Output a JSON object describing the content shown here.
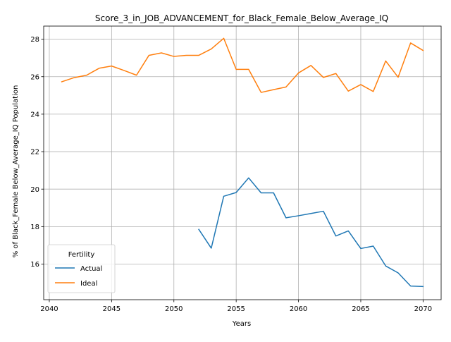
{
  "chart_data": {
    "type": "line",
    "title": "Score_3_in_JOB_ADVANCEMENT_for_Black_Female_Below_Average_IQ",
    "xlabel": "Years",
    "ylabel": "% of Black_Female Below_Average_IQ Population",
    "xlim": [
      2039.55,
      2071.45
    ],
    "ylim": [
      14.1,
      28.7
    ],
    "xticks": [
      2040,
      2045,
      2050,
      2055,
      2060,
      2065,
      2070
    ],
    "yticks": [
      16,
      18,
      20,
      22,
      24,
      26,
      28
    ],
    "grid": true,
    "legend": {
      "title": "Fertility",
      "placement": "lower-left"
    },
    "series": [
      {
        "name": "Actual",
        "color": "#1f77b4",
        "x": [
          2052,
          2053,
          2054,
          2055,
          2056,
          2057,
          2058,
          2059,
          2060,
          2061,
          2062,
          2063,
          2064,
          2065,
          2066,
          2067,
          2068,
          2069,
          2070
        ],
        "y": [
          17.85,
          16.85,
          19.62,
          19.82,
          20.6,
          19.8,
          19.8,
          18.47,
          18.58,
          18.7,
          18.82,
          17.5,
          17.77,
          16.83,
          16.96,
          15.9,
          15.53,
          14.83,
          14.8
        ]
      },
      {
        "name": "Ideal",
        "color": "#ff7f0e",
        "x": [
          2041,
          2042,
          2043,
          2044,
          2045,
          2046,
          2047,
          2048,
          2049,
          2050,
          2051,
          2052,
          2053,
          2054,
          2055,
          2056,
          2057,
          2058,
          2059,
          2060,
          2061,
          2062,
          2063,
          2064,
          2065,
          2066,
          2067,
          2068,
          2069,
          2070
        ],
        "y": [
          25.73,
          25.95,
          26.08,
          26.45,
          26.57,
          26.33,
          26.08,
          27.14,
          27.27,
          27.08,
          27.14,
          27.14,
          27.48,
          28.05,
          26.39,
          26.39,
          25.16,
          25.31,
          25.45,
          26.2,
          26.6,
          25.96,
          26.17,
          25.23,
          25.58,
          25.21,
          26.84,
          25.97,
          27.8,
          27.4
        ]
      }
    ]
  }
}
